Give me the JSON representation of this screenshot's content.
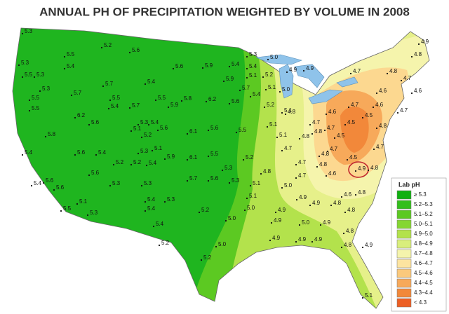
{
  "title": "ANNUAL PH OF PRECIPITATION WEIGHTED BY VOLUME IN 2008",
  "legend": {
    "title": "Lab pH",
    "items": [
      {
        "label": "≥ 5.3",
        "color": "#10b010"
      },
      {
        "label": "5.2–5.3",
        "color": "#33bf1c"
      },
      {
        "label": "5.1–5.2",
        "color": "#5cc922"
      },
      {
        "label": "5.0–5.1",
        "color": "#85d632"
      },
      {
        "label": "4.9–5.0",
        "color": "#b3e24c"
      },
      {
        "label": "4.8–4.9",
        "color": "#d9ee7c"
      },
      {
        "label": "4.7–4.8",
        "color": "#f5f4ac"
      },
      {
        "label": "4.6–4.7",
        "color": "#fde4a0"
      },
      {
        "label": "4.5–4.6",
        "color": "#fbc97c"
      },
      {
        "label": "4.4–4.5",
        "color": "#f7a95a"
      },
      {
        "label": "4.3–4.4",
        "color": "#f2883a"
      },
      {
        "label": "< 4.3",
        "color": "#ec5f24"
      }
    ]
  },
  "sites": [
    "5.3",
    "5.3",
    "5.5",
    "5.5",
    "5.3",
    "5.4",
    "5.3",
    "5.5",
    "5.5",
    "5.7",
    "5.2",
    "5.6",
    "5.7",
    "5.4",
    "5.5",
    "5.4",
    "5.7",
    "5.5",
    "5.9",
    "5.8",
    "5.6",
    "5.9",
    "6.2",
    "5.6",
    "5.4",
    "5.3",
    "5.0",
    "5.4",
    "5.1",
    "5.9",
    "5.7",
    "5.4",
    "5.2",
    "5.0",
    "4.9",
    "4.9",
    "5.1",
    "5.2",
    "5.1",
    "6.2",
    "5.6",
    "5.3",
    "5.4",
    "5.6",
    "5.1",
    "5.2",
    "6.1",
    "5.6",
    "5.5",
    "5.8",
    "5.4",
    "5.6",
    "5.4",
    "5.3",
    "5.1",
    "5.9",
    "6.1",
    "5.5",
    "5.2",
    "5.3",
    "5.6",
    "5.2",
    "5.2",
    "5.4",
    "5.3",
    "5.3",
    "5.6",
    "5.6",
    "5.4",
    "5.1",
    "5.3",
    "5.5",
    "5.4",
    "5.4",
    "5.3",
    "5.7",
    "5.6",
    "5.3",
    "5.1",
    "5.2",
    "5.2",
    "5.4",
    "5.1",
    "5.0",
    "5.0",
    "5.0",
    "5.2",
    "5.0",
    "4.9",
    "4.9",
    "4.9",
    "4.8",
    "5.1",
    "5.1",
    "4.8",
    "4.8",
    "4.7",
    "4.7",
    "4.8",
    "4.7",
    "4.8",
    "4.7",
    "4.5",
    "4.7",
    "4.5",
    "4.9",
    "4.8",
    "4.6",
    "4.7",
    "4.6",
    "4.5",
    "4.6",
    "4.7",
    "4.6",
    "4.7",
    "4.8",
    "4.7",
    "4.6",
    "4.7",
    "4.8",
    "4.7",
    "4.9",
    "4.8",
    "4.9",
    "5.0",
    "4.9",
    "4.9",
    "4.9",
    "4.9",
    "4.8",
    "4.8",
    "4.8",
    "4.6",
    "4.8",
    "4.8",
    "4.9",
    "5.1",
    "4.8",
    "4.5"
  ]
}
